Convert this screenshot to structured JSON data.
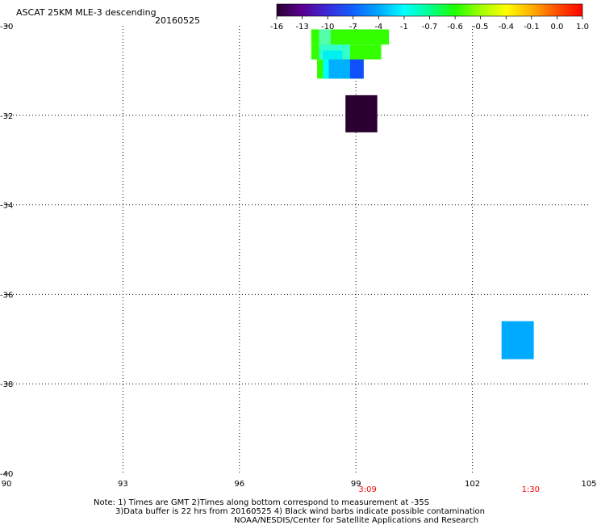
{
  "header": {
    "title": "ASCAT 25KM MLE-3 descending",
    "date": "20160525"
  },
  "colorbar": {
    "tick_labels": [
      "-16",
      "-13",
      "-10",
      "-7",
      "-4",
      "-1",
      "-0.7",
      "-0.6",
      "-0.5",
      "-0.4",
      "-0.1",
      "0.0",
      "1.0"
    ],
    "gradient_colors": [
      "#2a0030",
      "#5a0090",
      "#3a2bd8",
      "#1060ff",
      "#00a8ff",
      "#00ffff",
      "#00ff90",
      "#20ff00",
      "#a0ff00",
      "#ffff00",
      "#ffb000",
      "#ff5000",
      "#ff0000"
    ]
  },
  "map": {
    "lon_range": [
      90,
      105
    ],
    "lat_range": [
      -40,
      -30
    ],
    "lon_ticks": [
      "90",
      "93",
      "96",
      "99",
      "102",
      "105"
    ],
    "lat_ticks": [
      "-30",
      "-32",
      "-34",
      "-36",
      "-38",
      "-40"
    ],
    "grid_lons": [
      93,
      96,
      99,
      102
    ],
    "grid_lats": [
      -32,
      -34,
      -36,
      -38
    ],
    "time_labels": [
      {
        "label": "3:09",
        "lon": 99.3
      },
      {
        "label": "1:30",
        "lon": 103.5
      }
    ],
    "time_color": "#ff0000",
    "cells": [
      {
        "lon0": 97.85,
        "lon1": 99.85,
        "lat0": -30.08,
        "lat1": -30.42,
        "color": "#33ff00"
      },
      {
        "lon0": 97.85,
        "lon1": 98.0,
        "lat0": -30.08,
        "lat1": -30.42,
        "color": "#33ff00"
      },
      {
        "lon0": 98.05,
        "lon1": 98.35,
        "lat0": -30.08,
        "lat1": -30.42,
        "color": "#55ffaa"
      },
      {
        "lon0": 97.85,
        "lon1": 99.65,
        "lat0": -30.42,
        "lat1": -30.75,
        "color": "#33ff00"
      },
      {
        "lon0": 98.05,
        "lon1": 98.85,
        "lat0": -30.42,
        "lat1": -30.75,
        "color": "#33ffcc"
      },
      {
        "lon0": 98.15,
        "lon1": 98.65,
        "lat0": -30.55,
        "lat1": -30.75,
        "color": "#00f0f0"
      },
      {
        "lon0": 98.0,
        "lon1": 99.2,
        "lat0": -30.75,
        "lat1": -31.18,
        "color": "#33ff00"
      },
      {
        "lon0": 98.15,
        "lon1": 98.3,
        "lat0": -30.75,
        "lat1": -31.18,
        "color": "#00ffff"
      },
      {
        "lon0": 98.3,
        "lon1": 98.85,
        "lat0": -30.75,
        "lat1": -31.18,
        "color": "#00b0ff"
      },
      {
        "lon0": 98.85,
        "lon1": 99.2,
        "lat0": -30.75,
        "lat1": -31.18,
        "color": "#1050ff"
      },
      {
        "lon0": 98.73,
        "lon1": 99.55,
        "lat0": -31.55,
        "lat1": -32.38,
        "color": "#2a0030"
      },
      {
        "lon0": 102.75,
        "lon1": 103.58,
        "lat0": -36.6,
        "lat1": -37.45,
        "color": "#00aaff"
      }
    ]
  },
  "notes": {
    "line1": "Note: 1) Times are GMT 2)Times along bottom correspond to measurement at -35S",
    "line2": "3)Data buffer is 22 hrs from 20160525 4) Black wind barbs indicate possible contamination",
    "line3": "NOAA/NESDIS/Center for Satellite Applications and Research"
  }
}
